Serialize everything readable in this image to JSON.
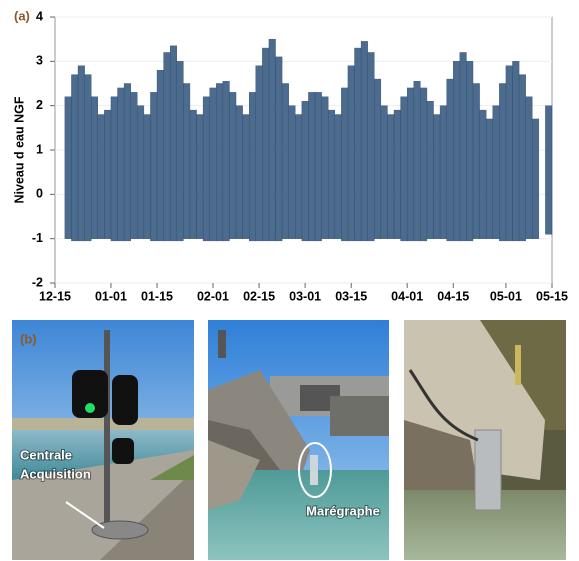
{
  "chart_data": {
    "type": "bar",
    "panel_label": "(a)",
    "ylabel": "Niveau d eau NGF",
    "x": [
      "12-19",
      "12-21",
      "12-23",
      "12-25",
      "12-27",
      "12-29",
      "12-31",
      "01-02",
      "01-04",
      "01-06",
      "01-08",
      "01-10",
      "01-12",
      "01-14",
      "01-16",
      "01-18",
      "01-20",
      "01-22",
      "01-24",
      "01-26",
      "01-28",
      "01-30",
      "02-01",
      "02-03",
      "02-05",
      "02-07",
      "02-09",
      "02-11",
      "02-13",
      "02-15",
      "02-17",
      "02-19",
      "02-21",
      "02-23",
      "02-25",
      "02-27",
      "03-01",
      "03-03",
      "03-05",
      "03-07",
      "03-09",
      "03-11",
      "03-13",
      "03-15",
      "03-17",
      "03-19",
      "03-21",
      "03-23",
      "03-25",
      "03-27",
      "03-29",
      "03-31",
      "04-02",
      "04-04",
      "04-06",
      "04-08",
      "04-10",
      "04-12",
      "04-14",
      "04-16",
      "04-18",
      "04-20",
      "04-22",
      "04-24",
      "04-26",
      "04-28",
      "04-30",
      "05-02",
      "05-04",
      "05-06",
      "05-08",
      "05-10",
      "05-12",
      "05-14"
    ],
    "series": [
      {
        "color": "#2e5179",
        "values": [
          2.2,
          2.7,
          2.9,
          2.7,
          2.2,
          1.8,
          1.9,
          2.2,
          2.4,
          2.5,
          2.3,
          2.0,
          1.8,
          2.3,
          2.8,
          3.2,
          3.35,
          3.0,
          2.5,
          1.9,
          1.8,
          2.2,
          2.4,
          2.5,
          2.55,
          2.3,
          2.0,
          1.8,
          2.3,
          2.9,
          3.3,
          3.5,
          3.1,
          2.5,
          2.0,
          1.8,
          2.1,
          2.3,
          2.3,
          2.2,
          1.9,
          1.8,
          2.4,
          2.9,
          3.3,
          3.45,
          3.2,
          2.6,
          2.0,
          1.8,
          1.9,
          2.2,
          2.4,
          2.55,
          2.4,
          2.1,
          1.8,
          2.0,
          2.6,
          3.0,
          3.2,
          3.0,
          2.5,
          1.9,
          1.7,
          2.0,
          2.5,
          2.9,
          3.0,
          2.7,
          2.2,
          1.7,
          null,
          2.0
        ]
      },
      {
        "color": "#2e5179",
        "values": [
          -1.0,
          -1.05,
          -1.05,
          -1.05,
          -1.0,
          -1.0,
          -1.0,
          -1.05,
          -1.05,
          -1.05,
          -1.0,
          -1.0,
          -1.0,
          -1.05,
          -1.05,
          -1.05,
          -1.05,
          -1.05,
          -1.0,
          -1.0,
          -1.0,
          -1.05,
          -1.05,
          -1.05,
          -1.05,
          -1.0,
          -1.0,
          -1.0,
          -1.05,
          -1.05,
          -1.05,
          -1.05,
          -1.05,
          -1.0,
          -1.0,
          -1.0,
          -1.05,
          -1.05,
          -1.05,
          -1.0,
          -1.0,
          -1.0,
          -1.05,
          -1.05,
          -1.05,
          -1.05,
          -1.05,
          -1.0,
          -1.0,
          -1.0,
          -1.0,
          -1.05,
          -1.05,
          -1.05,
          -1.05,
          -1.0,
          -1.0,
          -1.0,
          -1.05,
          -1.05,
          -1.05,
          -1.05,
          -1.0,
          -1.0,
          -1.0,
          -1.0,
          -1.05,
          -1.05,
          -1.05,
          -1.05,
          -1.0,
          -1.0,
          null,
          -0.9
        ]
      }
    ],
    "xlim": [
      "12-15",
      "05-15"
    ],
    "xticks": [
      "12-15",
      "01-01",
      "01-15",
      "02-01",
      "02-15",
      "03-01",
      "03-15",
      "04-01",
      "04-15",
      "05-01",
      "05-15"
    ],
    "ylim": [
      -2,
      4
    ],
    "yticks": [
      -2,
      -1,
      0,
      1,
      2,
      3,
      4
    ],
    "grid": true
  },
  "photos": {
    "panel_label": "(b)",
    "acquisition_label": [
      "Centrale",
      "Acquisition"
    ],
    "gauge_label": "Marégraphe"
  }
}
